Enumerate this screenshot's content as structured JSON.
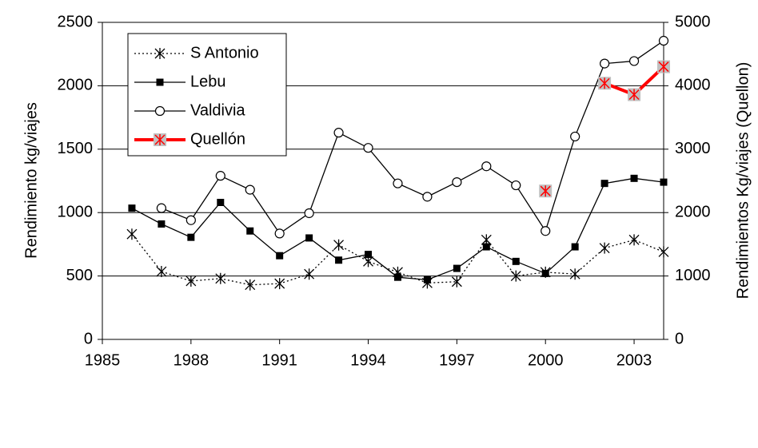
{
  "chart_data": {
    "type": "line",
    "y_label": "Rendimiento kg/viajes",
    "y2_label": "Rendimientos Kg/viajes (Quellon)",
    "x": [
      1986,
      1987,
      1988,
      1989,
      1990,
      1991,
      1992,
      1993,
      1994,
      1995,
      1996,
      1997,
      1998,
      1999,
      2000,
      2001,
      2002,
      2003,
      2004
    ],
    "series": [
      {
        "name": "S Antonio",
        "color": "#000000",
        "marker": "asterisk",
        "dash": "dotted",
        "axis": "y",
        "values": [
          830,
          535,
          460,
          480,
          430,
          440,
          515,
          745,
          615,
          530,
          445,
          455,
          785,
          500,
          530,
          515,
          720,
          785,
          690
        ]
      },
      {
        "name": "Lebu",
        "color": "#000000",
        "marker": "square",
        "dash": "solid",
        "axis": "y",
        "values": [
          1035,
          910,
          805,
          1080,
          855,
          660,
          800,
          625,
          670,
          490,
          470,
          560,
          730,
          615,
          520,
          730,
          1230,
          1270,
          1240
        ]
      },
      {
        "name": "Valdivia",
        "color": "#000000",
        "marker": "circle",
        "dash": "solid",
        "axis": "y",
        "values": [
          null,
          1035,
          940,
          1290,
          1180,
          835,
          995,
          1630,
          1510,
          1230,
          1125,
          1240,
          1365,
          1215,
          855,
          1600,
          2175,
          2195,
          2355
        ]
      },
      {
        "name": "Quellón",
        "color": "#ff0000",
        "marker": "boxed-asterisk",
        "dash": "bold",
        "axis": "y2",
        "values": [
          null,
          null,
          null,
          null,
          null,
          null,
          null,
          null,
          null,
          null,
          null,
          null,
          null,
          null,
          2340,
          null,
          4040,
          3860,
          4300
        ]
      }
    ],
    "xlim": [
      1985,
      2004
    ],
    "xticks": [
      1985,
      1988,
      1991,
      1994,
      1997,
      2000,
      2003
    ],
    "ylim": [
      0,
      2500
    ],
    "yticks": [
      0,
      500,
      1000,
      1500,
      2000,
      2500
    ],
    "y2lim": [
      0,
      5000
    ],
    "y2ticks": [
      0,
      1000,
      2000,
      3000,
      4000,
      5000
    ],
    "grid": true,
    "legend": "upper left"
  }
}
